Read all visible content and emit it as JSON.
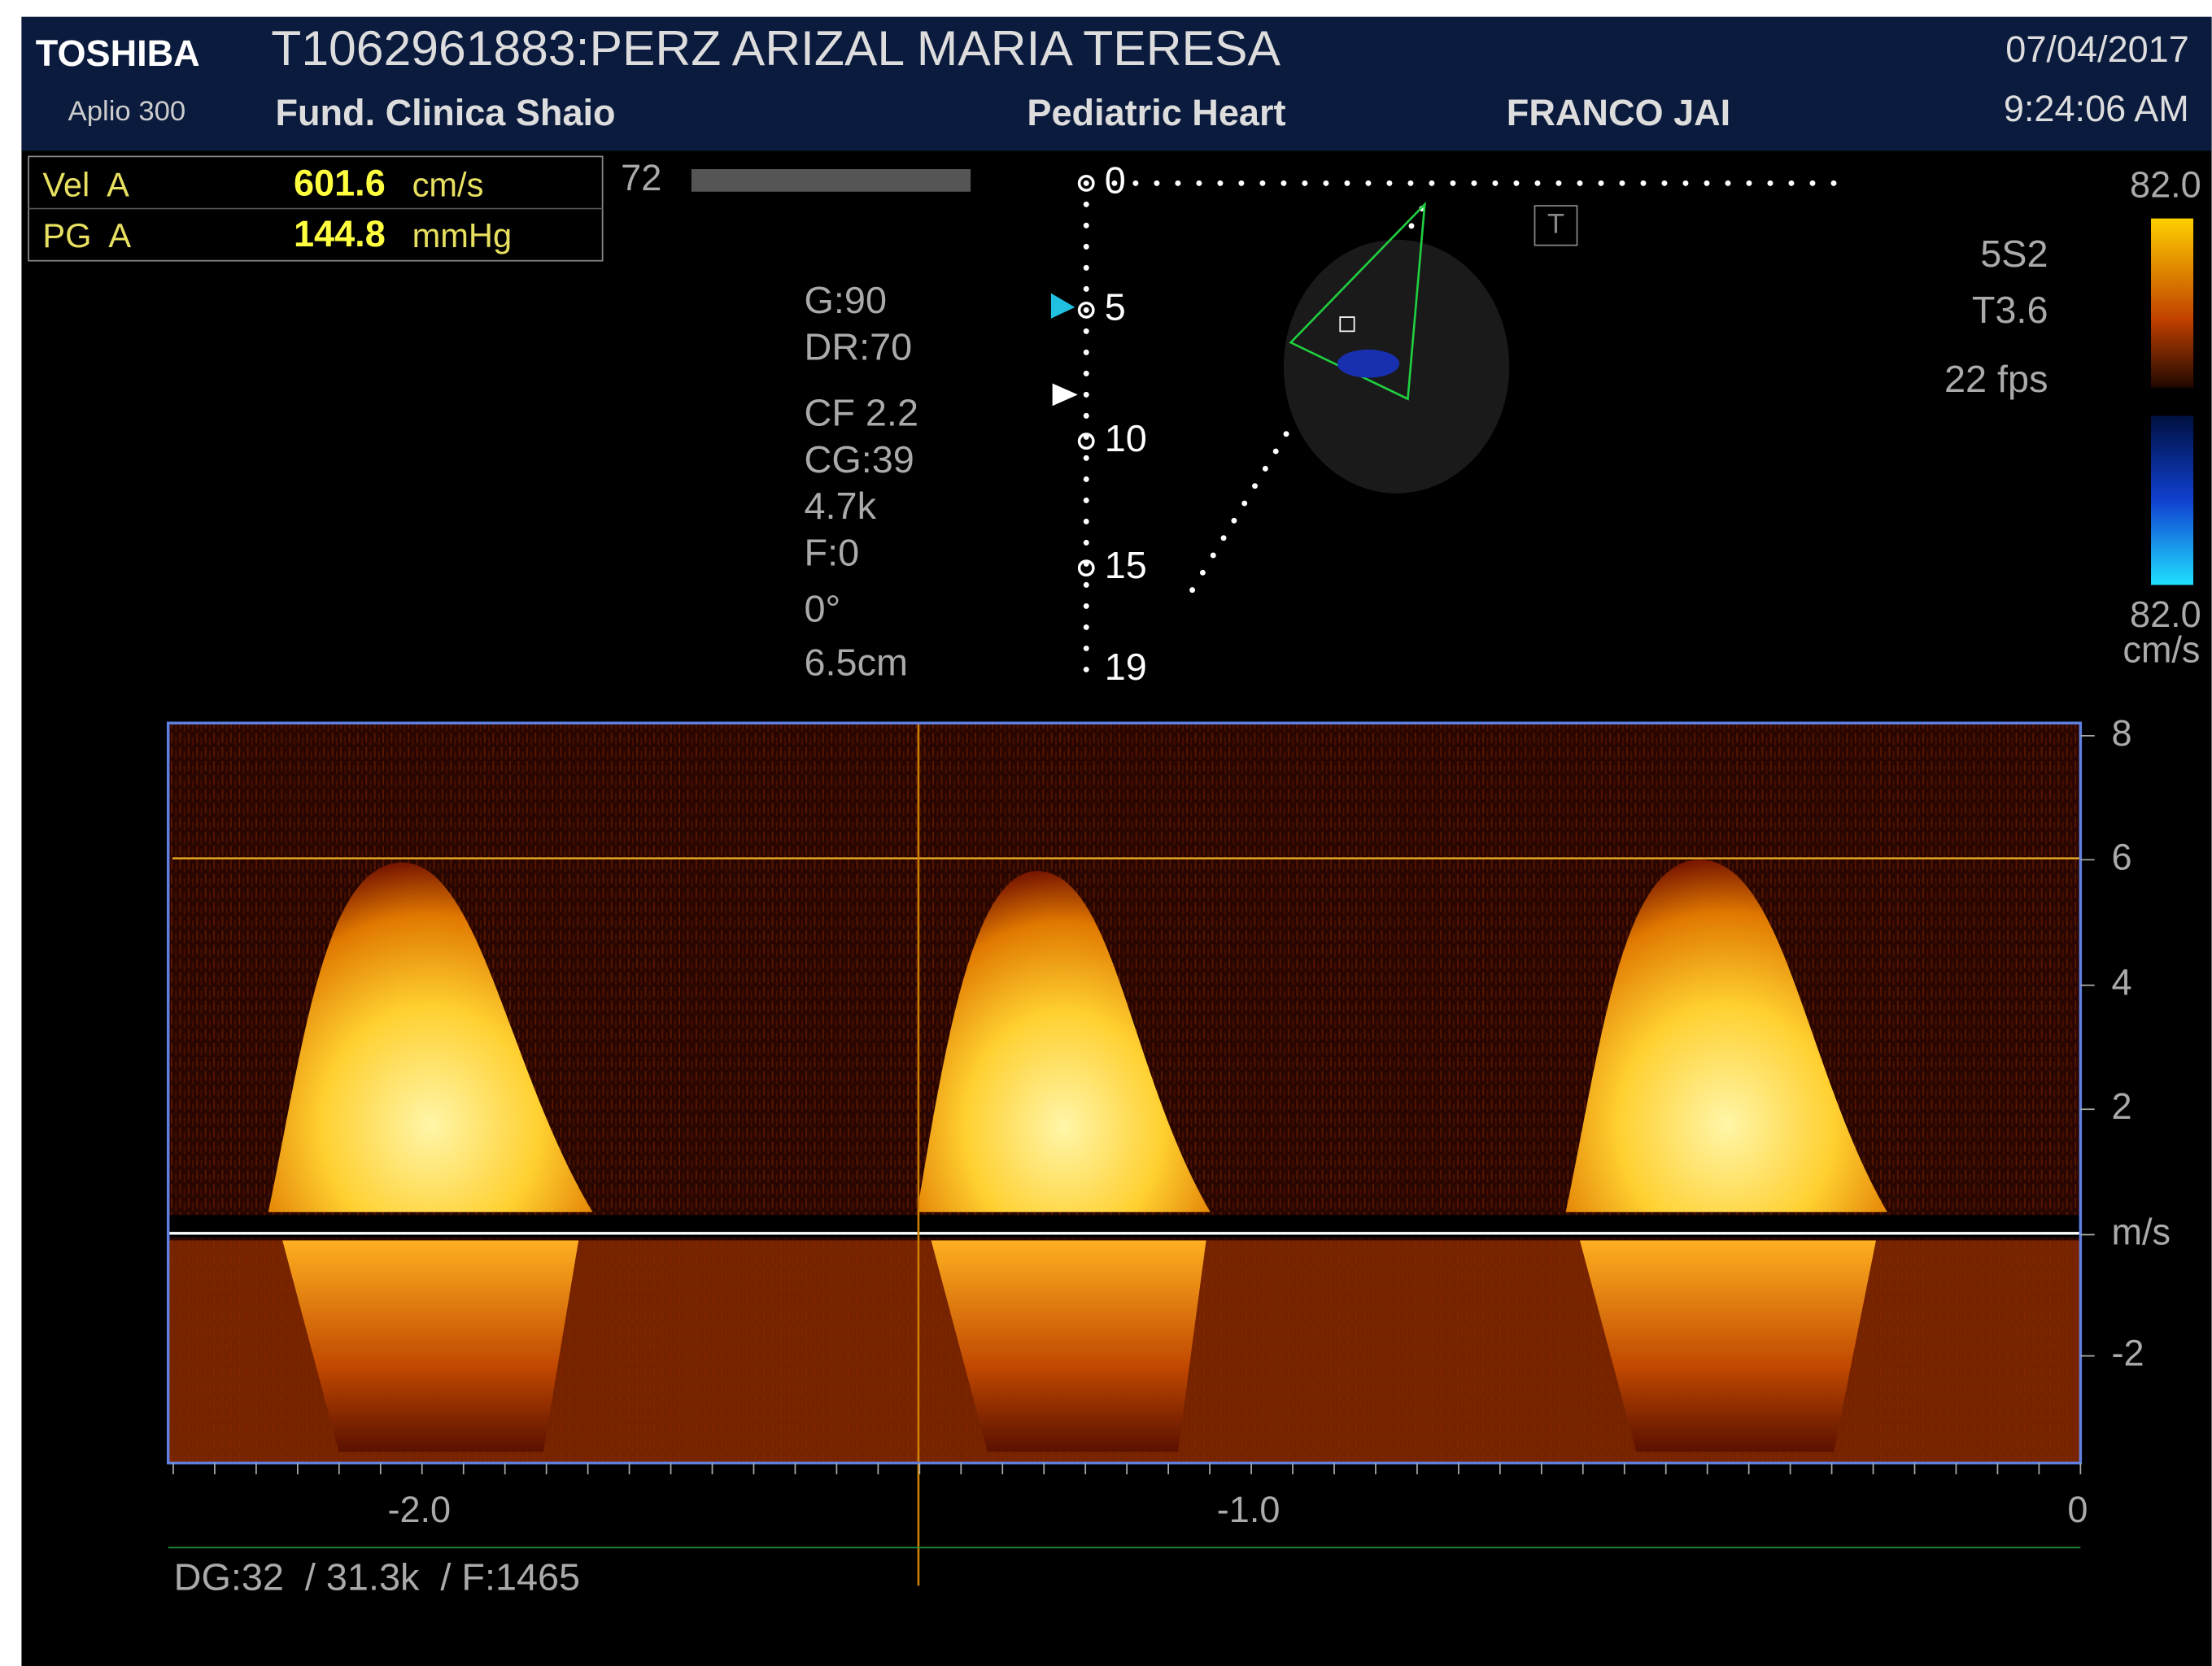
{
  "header": {
    "brand": "TOSHIBA",
    "model": "Aplio 300",
    "patient": "T1062961883:PERZ ARIZAL MARIA TERESA",
    "institution": "Fund. Clinica Shaio",
    "preset": "Pediatric Heart",
    "operator": "FRANCO JAI",
    "date": "07/04/2017",
    "time": "9:24:06 AM"
  },
  "measurements": [
    {
      "label": "Vel  A",
      "value": "601.6",
      "unit": "cm/s"
    },
    {
      "label": "PG  A",
      "value": "144.8",
      "unit": "mmHg"
    }
  ],
  "counter": "72",
  "params": [
    "G:90",
    "DR:70",
    "CF 2.2",
    "CG:39",
    "4.7k",
    "F:0",
    "0°",
    "6.5cm"
  ],
  "depth_labels": [
    "0",
    "5",
    "10",
    "15",
    "19"
  ],
  "t_marker": "T",
  "probe": {
    "transducer": "5S2",
    "mode": "T3.6",
    "fps": "22 fps"
  },
  "color_bar": {
    "top": "82.0",
    "bottom": "82.0",
    "unit": "cm/s"
  },
  "spectrum": {
    "velocity_labels": [
      "8",
      "6",
      "4",
      "2",
      "m/s",
      "-2"
    ],
    "time_labels": [
      "-2.0",
      "-1.0",
      "0"
    ]
  },
  "footer": "DG:32  / 31.3k  / F:1465"
}
